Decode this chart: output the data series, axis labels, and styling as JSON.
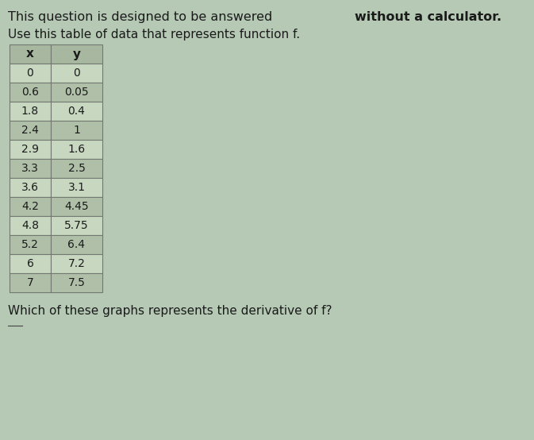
{
  "title_normal": "This question is designed to be answered ",
  "title_bold": "without a calculator.",
  "subtitle": "Use this table of data that represents function f.",
  "table_headers": [
    "x",
    "y"
  ],
  "table_data": [
    [
      "0",
      "0"
    ],
    [
      "0.6",
      "0.05"
    ],
    [
      "1.8",
      "0.4"
    ],
    [
      "2.4",
      "1"
    ],
    [
      "2.9",
      "1.6"
    ],
    [
      "3.3",
      "2.5"
    ],
    [
      "3.6",
      "3.1"
    ],
    [
      "4.2",
      "4.45"
    ],
    [
      "4.8",
      "5.75"
    ],
    [
      "5.2",
      "6.4"
    ],
    [
      "6",
      "7.2"
    ],
    [
      "7",
      "7.5"
    ]
  ],
  "footer_text": "Which of these graphs represents the derivative of f?",
  "background_color": "#b5c9b5",
  "table_header_bg": "#a8b8a0",
  "table_row_light": "#c8d8c0",
  "table_row_dark": "#b0c0a8",
  "table_border_color": "#707870",
  "text_color": "#1a1a1a",
  "title_fontsize": 11.5,
  "subtitle_fontsize": 11,
  "table_fontsize": 10,
  "footer_fontsize": 11
}
